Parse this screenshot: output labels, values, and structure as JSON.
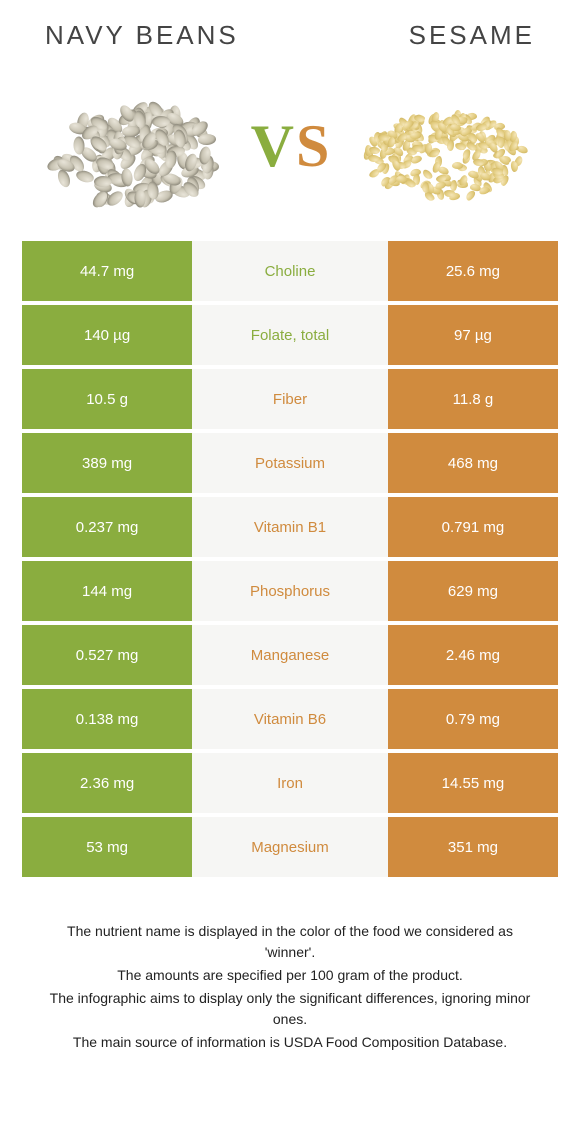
{
  "colors": {
    "left": "#8aad3f",
    "right": "#d08b3e",
    "mid_bg": "#f6f6f4"
  },
  "header": {
    "left_title": "NAVY BEANS",
    "right_title": "SESAME",
    "vs_v": "V",
    "vs_s": "S"
  },
  "rows": [
    {
      "left": "44.7 mg",
      "label": "Choline",
      "right": "25.6 mg",
      "winner": "left"
    },
    {
      "left": "140 µg",
      "label": "Folate, total",
      "right": "97 µg",
      "winner": "left"
    },
    {
      "left": "10.5 g",
      "label": "Fiber",
      "right": "11.8 g",
      "winner": "right"
    },
    {
      "left": "389 mg",
      "label": "Potassium",
      "right": "468 mg",
      "winner": "right"
    },
    {
      "left": "0.237 mg",
      "label": "Vitamin B1",
      "right": "0.791 mg",
      "winner": "right"
    },
    {
      "left": "144 mg",
      "label": "Phosphorus",
      "right": "629 mg",
      "winner": "right"
    },
    {
      "left": "0.527 mg",
      "label": "Manganese",
      "right": "2.46 mg",
      "winner": "right"
    },
    {
      "left": "0.138 mg",
      "label": "Vitamin B6",
      "right": "0.79 mg",
      "winner": "right"
    },
    {
      "left": "2.36 mg",
      "label": "Iron",
      "right": "14.55 mg",
      "winner": "right"
    },
    {
      "left": "53 mg",
      "label": "Magnesium",
      "right": "351 mg",
      "winner": "right"
    }
  ],
  "footer": {
    "line1": "The nutrient name is displayed in the color of the food we considered as 'winner'.",
    "line2": "The amounts are specified per 100 gram of the product.",
    "line3": "The infographic aims to display only the significant differences, ignoring minor ones.",
    "line4": "The main source of information is USDA Food Composition Database."
  }
}
